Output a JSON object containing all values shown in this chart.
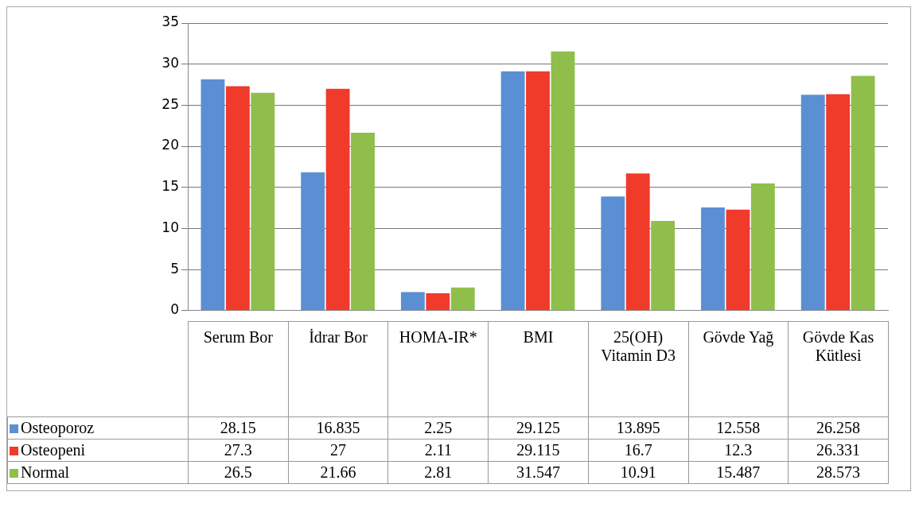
{
  "chart_data": {
    "type": "bar",
    "categories": [
      "Serum Bor",
      "İdrar Bor",
      "HOMA-IR*",
      "BMI",
      "25(OH) Vitamin D3",
      "Gövde Yağ",
      "Gövde Kas Kütlesi"
    ],
    "series": [
      {
        "name": "Osteoporoz",
        "color": "#5b8fd4",
        "values": [
          28.15,
          16.835,
          2.25,
          29.125,
          13.895,
          12.558,
          26.258
        ]
      },
      {
        "name": "Osteopeni",
        "color": "#f03a2a",
        "values": [
          27.3,
          27,
          2.11,
          29.115,
          16.7,
          12.3,
          26.331
        ]
      },
      {
        "name": "Normal",
        "color": "#8fbe4a",
        "values": [
          26.5,
          21.66,
          2.81,
          31.547,
          10.91,
          15.487,
          28.573
        ]
      }
    ],
    "ylim": [
      0,
      35
    ],
    "yticks": [
      0,
      5,
      10,
      15,
      20,
      25,
      30,
      35
    ],
    "grid": "y",
    "legend": "bottom",
    "data_labels": true
  }
}
